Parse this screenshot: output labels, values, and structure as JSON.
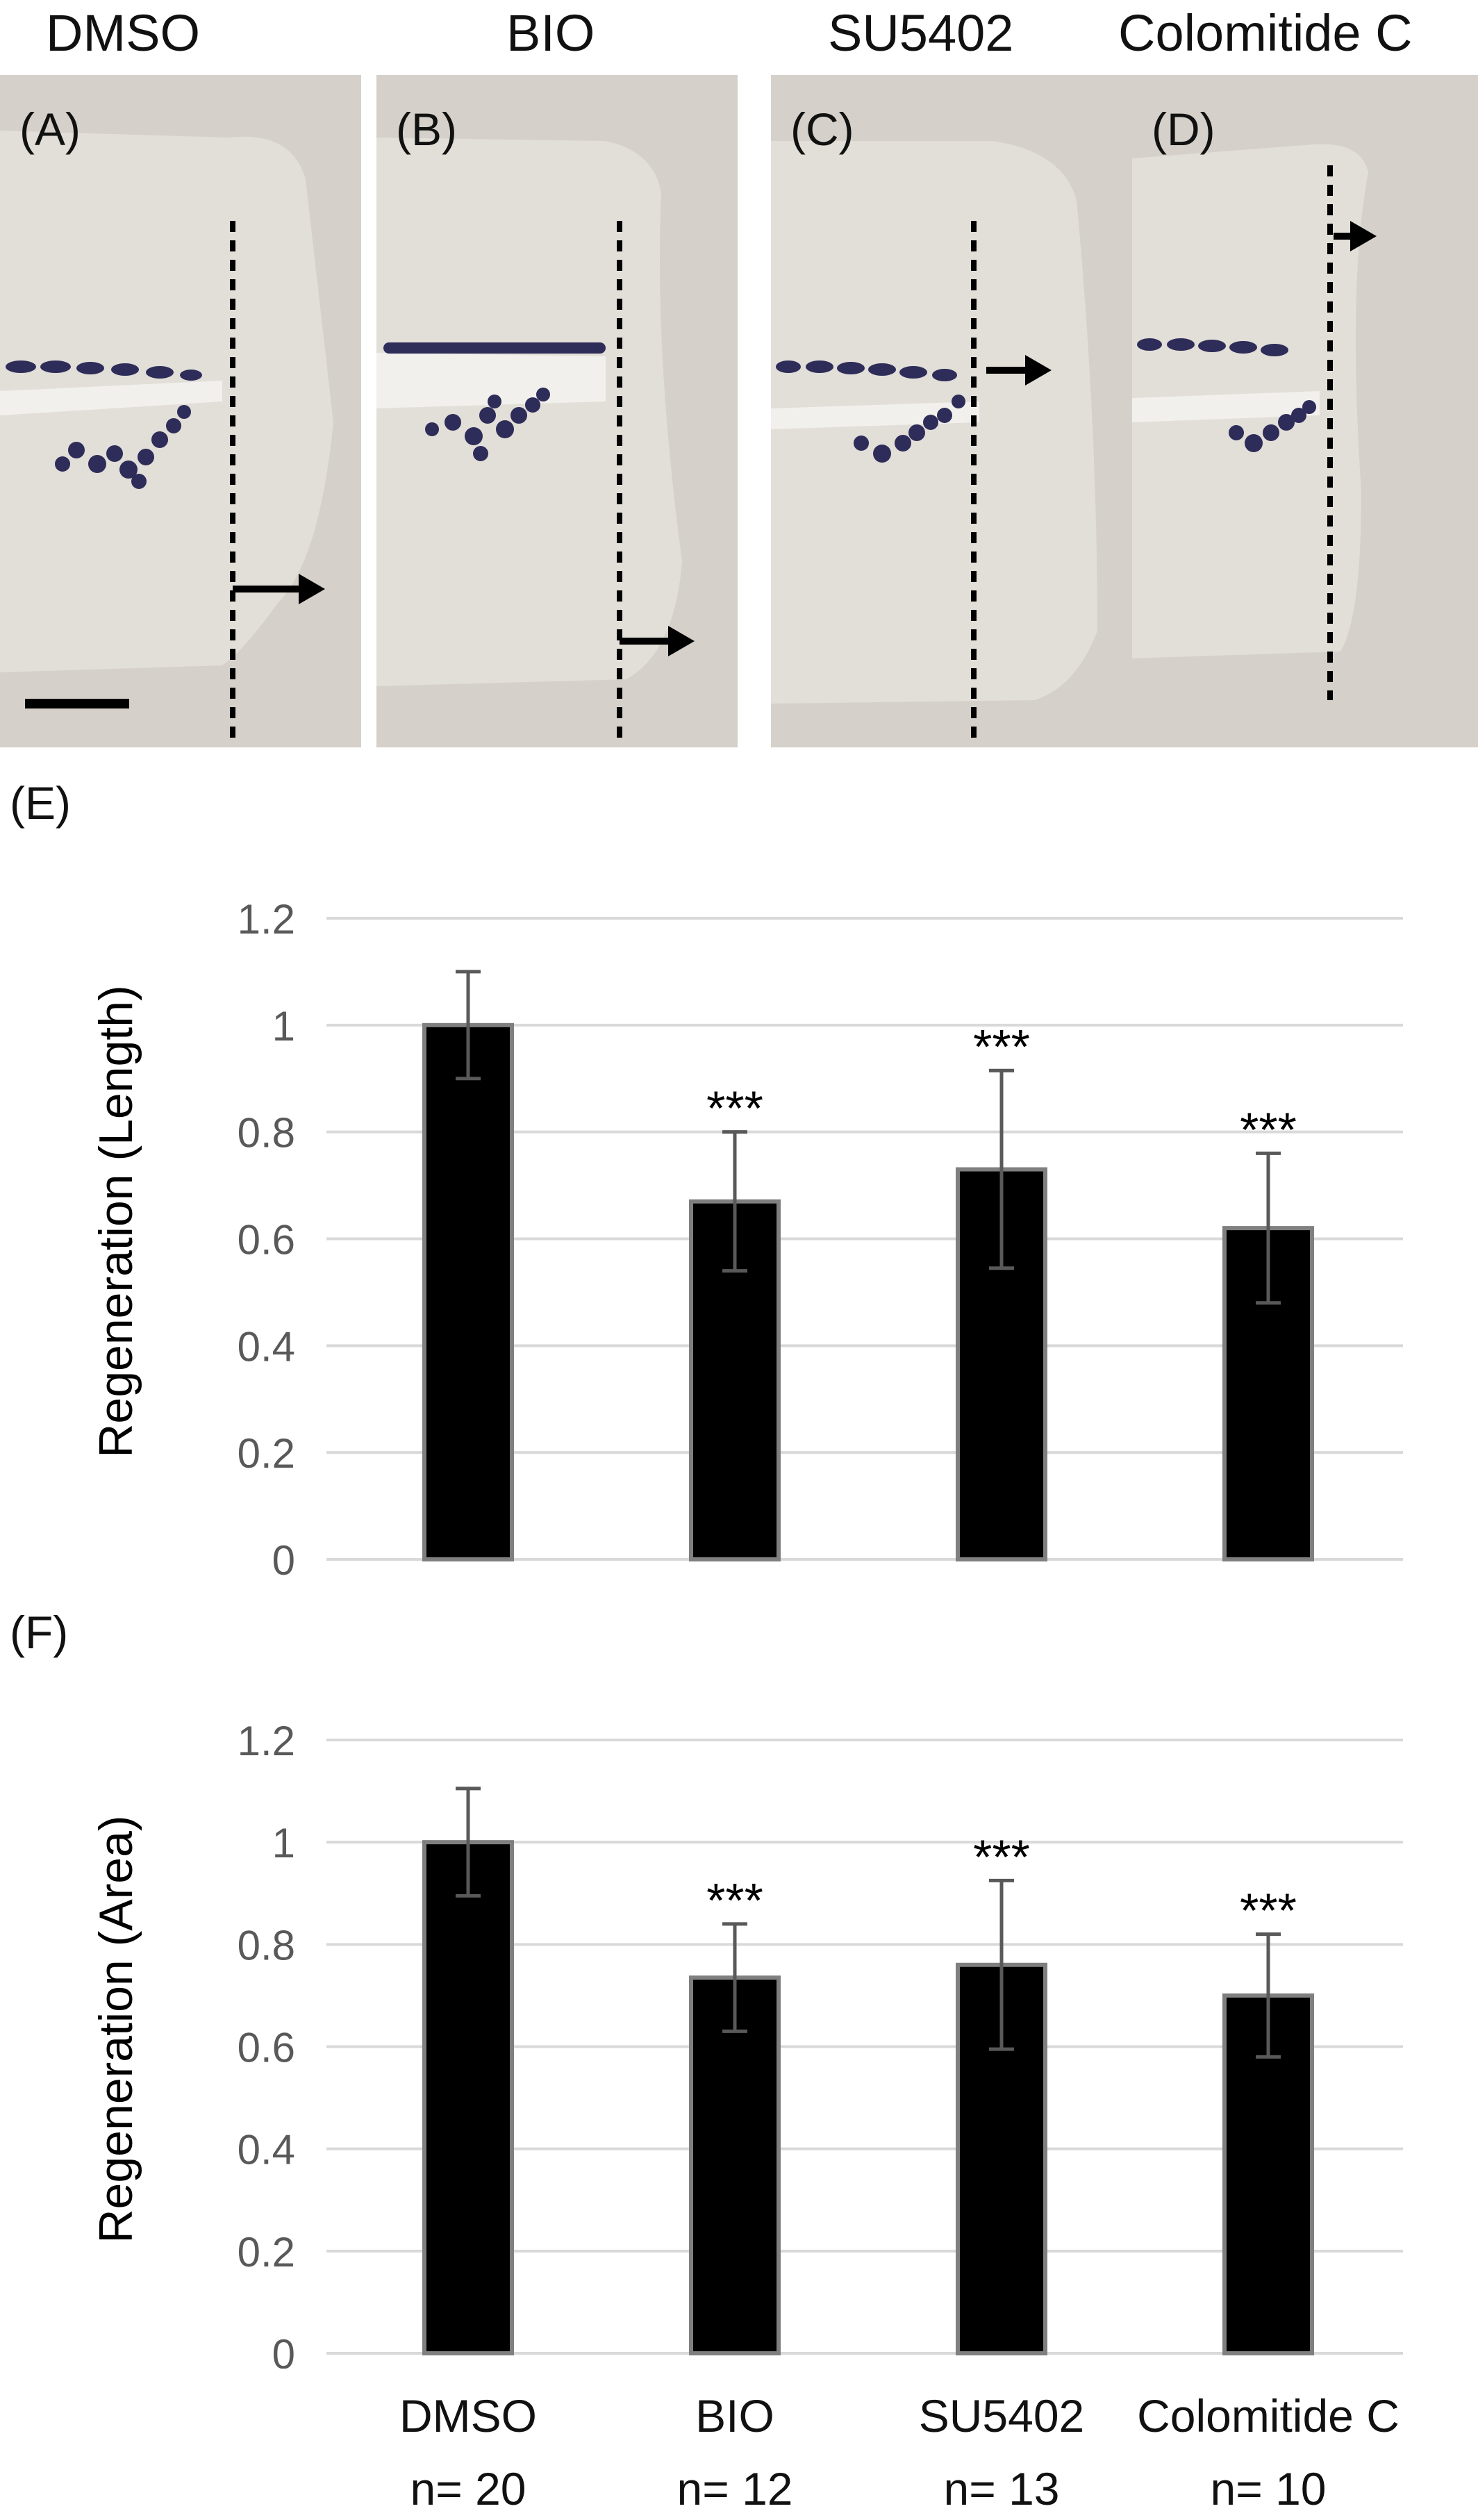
{
  "columns": [
    "DMSO",
    "BIO",
    "SU5402",
    "Colomitide C"
  ],
  "panels": [
    {
      "label": "(A)",
      "arrow_pct": 0.73
    },
    {
      "label": "(B)",
      "arrow_pct": 0.86
    },
    {
      "label": "(C)",
      "arrow_pct": 0.36
    },
    {
      "label": "(D)",
      "arrow_pct": 0.13
    }
  ],
  "colors": {
    "panel_bg": "#d5d0c9",
    "bar": "#000000",
    "bar_edge": "#7f7f7f",
    "grid": "#d9d9d9",
    "error": "#595959",
    "stain": "#2e2c58"
  },
  "chart_data": [
    {
      "panel": "(E)",
      "type": "bar",
      "categories": [
        "DMSO",
        "BIO",
        "SU5402",
        "Colomitide C"
      ],
      "ylabel": "Regeneration (Length)",
      "ylim": [
        0,
        1.2
      ],
      "yticks": [
        "0",
        "0.2",
        "0.4",
        "0.6",
        "0.8",
        "1",
        "1.2"
      ],
      "values": [
        1.0,
        0.67,
        0.73,
        0.62
      ],
      "errors": [
        0.1,
        0.13,
        0.185,
        0.14
      ],
      "significance": [
        "",
        "***",
        "***",
        "***"
      ],
      "grid": true
    },
    {
      "panel": "(F)",
      "type": "bar",
      "categories": [
        "DMSO",
        "BIO",
        "SU5402",
        "Colomitide C"
      ],
      "ylabel": "Regeneration (Area)",
      "ylim": [
        0,
        1.2
      ],
      "yticks": [
        "0",
        "0.2",
        "0.4",
        "0.6",
        "0.8",
        "1",
        "1.2"
      ],
      "values": [
        1.0,
        0.735,
        0.76,
        0.7
      ],
      "errors": [
        0.105,
        0.105,
        0.165,
        0.12
      ],
      "significance": [
        "",
        "***",
        "***",
        "***"
      ],
      "grid": true
    }
  ],
  "sample_sizes": [
    "n= 20",
    "n= 12",
    "n= 13",
    "n= 10"
  ]
}
